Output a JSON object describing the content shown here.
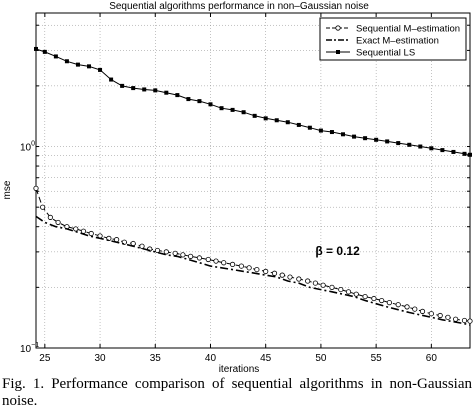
{
  "chart_data": {
    "type": "line",
    "title": "Sequential algorithms performance in non–Gaussian noise",
    "xlabel": "iterations",
    "ylabel": "mse",
    "xlim": [
      24.2,
      63.5
    ],
    "ylim": [
      0.1,
      10
    ],
    "yscale": "log",
    "xticks": [
      25,
      30,
      35,
      40,
      45,
      50,
      55,
      60
    ],
    "ytick_labels": [
      "10^-1",
      "10^0"
    ],
    "grid": true,
    "legend_position": "top-right",
    "annotation": {
      "prefix": "β = ",
      "value": "0.12",
      "x": 49.5,
      "y": 0.29
    },
    "series": [
      {
        "name": "Sequential M–estimation",
        "style": "dashed",
        "marker": "circle",
        "points": [
          [
            24.2,
            0.62
          ],
          [
            24.8,
            0.5
          ],
          [
            25.5,
            0.445
          ],
          [
            26.2,
            0.42
          ],
          [
            27,
            0.4
          ],
          [
            27.8,
            0.39
          ],
          [
            28.5,
            0.38
          ],
          [
            29.2,
            0.37
          ],
          [
            30,
            0.36
          ],
          [
            30.8,
            0.35
          ],
          [
            31.5,
            0.345
          ],
          [
            32.2,
            0.335
          ],
          [
            33,
            0.33
          ],
          [
            33.8,
            0.32
          ],
          [
            34.5,
            0.31
          ],
          [
            35.2,
            0.305
          ],
          [
            36,
            0.3
          ],
          [
            36.8,
            0.295
          ],
          [
            37.5,
            0.29
          ],
          [
            38.2,
            0.285
          ],
          [
            39,
            0.28
          ],
          [
            39.8,
            0.275
          ],
          [
            40.5,
            0.27
          ],
          [
            41.2,
            0.265
          ],
          [
            42,
            0.26
          ],
          [
            42.8,
            0.255
          ],
          [
            43.5,
            0.25
          ],
          [
            44.2,
            0.245
          ],
          [
            45,
            0.24
          ],
          [
            45.8,
            0.235
          ],
          [
            46.5,
            0.23
          ],
          [
            47.2,
            0.225
          ],
          [
            48,
            0.22
          ],
          [
            48.8,
            0.215
          ],
          [
            49.5,
            0.21
          ],
          [
            50.2,
            0.205
          ],
          [
            51,
            0.2
          ],
          [
            51.8,
            0.195
          ],
          [
            52.5,
            0.19
          ],
          [
            53.2,
            0.185
          ],
          [
            54,
            0.18
          ],
          [
            54.8,
            0.176
          ],
          [
            55.5,
            0.172
          ],
          [
            56.2,
            0.168
          ],
          [
            57,
            0.164
          ],
          [
            57.8,
            0.16
          ],
          [
            58.5,
            0.156
          ],
          [
            59.2,
            0.152
          ],
          [
            60,
            0.148
          ],
          [
            60.8,
            0.145
          ],
          [
            61.5,
            0.142
          ],
          [
            62.2,
            0.139
          ],
          [
            63,
            0.137
          ],
          [
            63.5,
            0.136
          ]
        ]
      },
      {
        "name": "Exact M–estimation",
        "style": "dashdot",
        "marker": "none",
        "points": [
          [
            24.2,
            0.45
          ],
          [
            25,
            0.42
          ],
          [
            26,
            0.4
          ],
          [
            27,
            0.39
          ],
          [
            28,
            0.375
          ],
          [
            29,
            0.36
          ],
          [
            30,
            0.35
          ],
          [
            31,
            0.34
          ],
          [
            32,
            0.33
          ],
          [
            33,
            0.32
          ],
          [
            34,
            0.31
          ],
          [
            35,
            0.3
          ],
          [
            36,
            0.29
          ],
          [
            37,
            0.285
          ],
          [
            38,
            0.275
          ],
          [
            39,
            0.265
          ],
          [
            40,
            0.255
          ],
          [
            41,
            0.25
          ],
          [
            42,
            0.245
          ],
          [
            43,
            0.24
          ],
          [
            44,
            0.235
          ],
          [
            45,
            0.23
          ],
          [
            46,
            0.225
          ],
          [
            47,
            0.215
          ],
          [
            48,
            0.21
          ],
          [
            49,
            0.2
          ],
          [
            50,
            0.195
          ],
          [
            51,
            0.19
          ],
          [
            52,
            0.185
          ],
          [
            53,
            0.18
          ],
          [
            54,
            0.172
          ],
          [
            55,
            0.166
          ],
          [
            56,
            0.16
          ],
          [
            57,
            0.155
          ],
          [
            58,
            0.15
          ],
          [
            59,
            0.146
          ],
          [
            60,
            0.142
          ],
          [
            61,
            0.138
          ],
          [
            62,
            0.135
          ],
          [
            63,
            0.132
          ],
          [
            63.5,
            0.13
          ]
        ]
      },
      {
        "name": "Sequential LS",
        "style": "solid",
        "marker": "square",
        "points": [
          [
            24.2,
            3.05
          ],
          [
            25,
            2.95
          ],
          [
            26,
            2.8
          ],
          [
            27,
            2.65
          ],
          [
            28,
            2.55
          ],
          [
            29,
            2.5
          ],
          [
            30,
            2.4
          ],
          [
            31,
            2.15
          ],
          [
            32,
            2.0
          ],
          [
            33,
            1.95
          ],
          [
            34,
            1.92
          ],
          [
            35,
            1.9
          ],
          [
            36,
            1.85
          ],
          [
            37,
            1.8
          ],
          [
            38,
            1.72
          ],
          [
            39,
            1.68
          ],
          [
            40,
            1.62
          ],
          [
            41,
            1.55
          ],
          [
            42,
            1.52
          ],
          [
            43,
            1.48
          ],
          [
            44,
            1.42
          ],
          [
            45,
            1.38
          ],
          [
            46,
            1.35
          ],
          [
            47,
            1.32
          ],
          [
            48,
            1.28
          ],
          [
            49,
            1.24
          ],
          [
            50,
            1.2
          ],
          [
            51,
            1.18
          ],
          [
            52,
            1.15
          ],
          [
            53,
            1.12
          ],
          [
            54,
            1.1
          ],
          [
            55,
            1.08
          ],
          [
            56,
            1.06
          ],
          [
            57,
            1.04
          ],
          [
            58,
            1.02
          ],
          [
            59,
            1.0
          ],
          [
            60,
            0.98
          ],
          [
            61,
            0.96
          ],
          [
            62,
            0.94
          ],
          [
            63,
            0.92
          ],
          [
            63.5,
            0.91
          ]
        ]
      }
    ]
  },
  "caption": {
    "text": "Fig. 1.   Performance comparison of sequential algorithms in non-Gaussian noise."
  }
}
